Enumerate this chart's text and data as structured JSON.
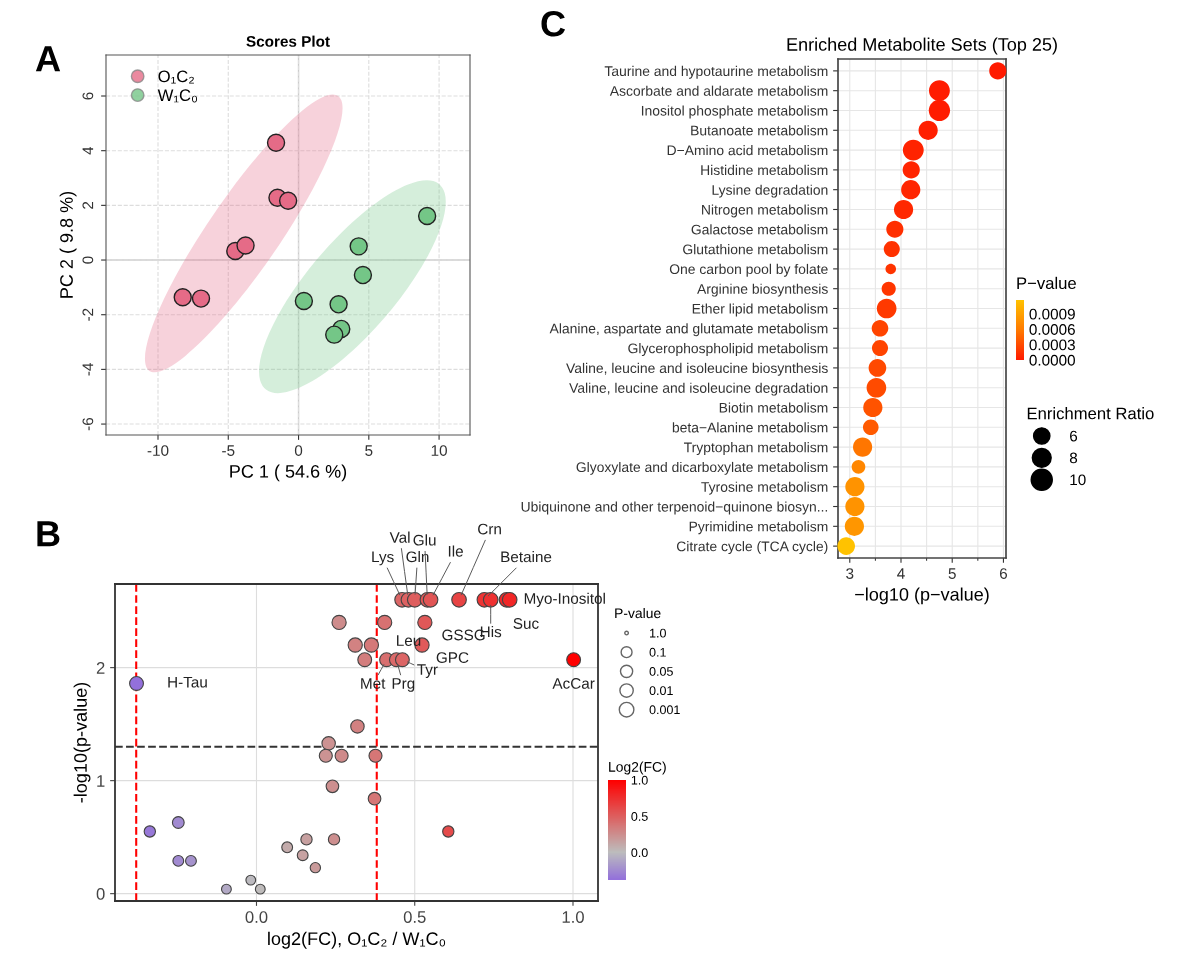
{
  "chart_data": [
    {
      "type": "scatter",
      "title": "Scores Plot",
      "xlabel": "PC 1 ( 54.6 %)",
      "ylabel": "PC 2 ( 9.8 %)",
      "xlim": [
        -13.7,
        12.2
      ],
      "ylim": [
        -6.4,
        7.5
      ],
      "xticks": [
        -10,
        -5,
        0,
        5,
        10
      ],
      "yticks": [
        -6,
        -4,
        -2,
        0,
        2,
        4,
        6
      ],
      "grid": true,
      "legend": "top left",
      "marker": "circle",
      "annotations": [
        "A"
      ],
      "series": [
        {
          "name": "O₁C₂",
          "color": "#e56b87",
          "x": [
            -1.6,
            -1.5,
            -0.74,
            -4.5,
            -3.77,
            -8.24,
            -6.94
          ],
          "values": [
            4.29,
            2.28,
            2.17,
            0.33,
            0.53,
            -1.36,
            -1.41
          ]
        },
        {
          "name": "W₁C₀",
          "color": "#74c687",
          "x": [
            9.15,
            4.28,
            4.58,
            0.38,
            2.85,
            3.04,
            2.54
          ],
          "values": [
            1.61,
            0.5,
            -0.55,
            -1.5,
            -1.62,
            -2.52,
            -2.73
          ]
        }
      ]
    },
    {
      "type": "bubble",
      "xlabel": "log2(FC), O₁C₂ / W₁C₀",
      "ylabel": "-log10(p-value)",
      "xlim": [
        -0.447,
        1.079
      ],
      "ylim": [
        -0.065,
        2.74
      ],
      "xticks": [
        {
          "value": 0,
          "label": "0.0"
        },
        {
          "value": 0.5,
          "label": "0.5"
        },
        {
          "value": 1,
          "label": "1.0"
        }
      ],
      "yticks": [
        0,
        1,
        2
      ],
      "grid": true,
      "marker": "circle",
      "legend_title": "P-value",
      "clabel": "Log2(FC)",
      "clim": [
        -0.38,
        1.0
      ],
      "cticks": [
        {
          "value": 0,
          "label": "0.0"
        },
        {
          "value": 0.5,
          "label": "0.5"
        },
        {
          "value": 1,
          "label": "1.0"
        }
      ],
      "size_legend": [
        {
          "value": 0.06,
          "label": "1.0"
        },
        {
          "value": 0.56,
          "label": "0.1"
        },
        {
          "value": 0.7,
          "label": "0.05"
        },
        {
          "value": 0.84,
          "label": "0.01"
        },
        {
          "value": 1.0,
          "label": "0.001"
        }
      ],
      "x": [
        0.46,
        0.48,
        0.5,
        0.54,
        0.55,
        0.64,
        0.72,
        0.74,
        0.79,
        0.8,
        0.261,
        0.405,
        0.532,
        0.312,
        0.363,
        0.523,
        0.342,
        0.411,
        0.442,
        0.461,
        1.002,
        -0.379,
        0.319,
        0.228,
        0.219,
        0.269,
        0.376,
        0.24,
        0.373,
        0.606,
        -0.337,
        -0.247,
        -0.247,
        -0.207,
        0.158,
        0.245,
        0.097,
        0.146,
        0.186,
        -0.018,
        0.012,
        -0.095
      ],
      "values": [
        2.6,
        2.6,
        2.6,
        2.6,
        2.6,
        2.6,
        2.6,
        2.6,
        2.6,
        2.6,
        2.4,
        2.4,
        2.4,
        2.2,
        2.2,
        2.2,
        2.07,
        2.07,
        2.07,
        2.07,
        2.07,
        1.86,
        1.48,
        1.33,
        1.22,
        1.22,
        1.22,
        0.95,
        0.84,
        0.55,
        0.55,
        0.63,
        0.29,
        0.29,
        0.48,
        0.48,
        0.41,
        0.34,
        0.23,
        0.12,
        0.04,
        0.04
      ],
      "cvalues": [
        0.46,
        0.48,
        0.5,
        0.54,
        0.55,
        0.64,
        0.72,
        0.74,
        0.79,
        0.8,
        0.261,
        0.405,
        0.532,
        0.312,
        0.363,
        0.523,
        0.342,
        0.411,
        0.442,
        0.461,
        1.0,
        -0.379,
        0.319,
        0.228,
        0.219,
        0.269,
        0.376,
        0.24,
        0.373,
        0.606,
        -0.337,
        -0.247,
        -0.247,
        -0.207,
        0.158,
        0.245,
        0.097,
        0.146,
        0.186,
        -0.018,
        0.012,
        -0.095
      ],
      "sizes": [
        1.0,
        1.0,
        1.0,
        1.0,
        1.0,
        1.0,
        1.0,
        1.0,
        1.0,
        1.0,
        0.95,
        0.95,
        0.95,
        0.95,
        0.95,
        0.95,
        0.9,
        0.9,
        0.9,
        0.9,
        0.9,
        0.9,
        0.85,
        0.85,
        0.8,
        0.8,
        0.8,
        0.75,
        0.75,
        0.6,
        0.6,
        0.65,
        0.55,
        0.55,
        0.6,
        0.6,
        0.55,
        0.55,
        0.5,
        0.45,
        0.45,
        0.45
      ],
      "ref_lines": [
        {
          "axis": "x",
          "value": -0.38,
          "color": "#ff0000",
          "line_style": "dashed"
        },
        {
          "axis": "x",
          "value": 0.38,
          "color": "#ff0000",
          "line_style": "dashed"
        },
        {
          "axis": "y",
          "value": 1.3,
          "color": "#333333",
          "line_style": "dashed"
        }
      ],
      "annotations": [
        "B",
        {
          "text": "Lys",
          "x": 0.46,
          "y": 2.6
        },
        {
          "text": "Val",
          "x": 0.48,
          "y": 2.6
        },
        {
          "text": "Gln",
          "x": 0.5,
          "y": 2.6
        },
        {
          "text": "Glu",
          "x": 0.54,
          "y": 2.6
        },
        {
          "text": "Ile",
          "x": 0.55,
          "y": 2.6
        },
        {
          "text": "Crn",
          "x": 0.64,
          "y": 2.6
        },
        {
          "text": "Betaine",
          "x": 0.72,
          "y": 2.6
        },
        {
          "text": "His",
          "x": 0.74,
          "y": 2.6
        },
        {
          "text": "Suc",
          "x": 0.79,
          "y": 2.6
        },
        {
          "text": "Myo-Inositol",
          "x": 0.8,
          "y": 2.6
        },
        {
          "text": "Leu",
          "x": 0.405,
          "y": 2.4
        },
        {
          "text": "GSSG",
          "x": 0.532,
          "y": 2.4
        },
        {
          "text": "GPC",
          "x": 0.523,
          "y": 2.2
        },
        {
          "text": "Met",
          "x": 0.411,
          "y": 2.07
        },
        {
          "text": "Prg",
          "x": 0.442,
          "y": 2.07
        },
        {
          "text": "Tyr",
          "x": 0.461,
          "y": 2.07
        },
        {
          "text": "AcCar",
          "x": 1.002,
          "y": 2.07
        },
        {
          "text": "H-Tau",
          "x": -0.379,
          "y": 1.86
        }
      ]
    },
    {
      "type": "bubble",
      "orientation": "horizontal",
      "title": "Enriched Metabolite Sets (Top 25)",
      "xlabel": "−log10 (p−value)",
      "xlim": [
        2.77,
        6.05
      ],
      "xticks": [
        3,
        4,
        5,
        6
      ],
      "grid": true,
      "marker": "circle",
      "legend_title": "Enrichment Ratio",
      "clabel": "P−value",
      "clim": [
        0,
        0.00117
      ],
      "cticks": [
        {
          "value": 0,
          "label": "0.0000"
        },
        {
          "value": 0.0003,
          "label": "0.0003"
        },
        {
          "value": 0.0006,
          "label": "0.0006"
        },
        {
          "value": 0.0009,
          "label": "0.0009"
        }
      ],
      "size_legend": [
        6,
        8,
        10
      ],
      "annotations": [
        "C"
      ],
      "categories": [
        "Taurine and hypotaurine metabolism",
        "Ascorbate and aldarate metabolism",
        "Inositol phosphate metabolism",
        "Butanoate metabolism",
        "D−Amino acid metabolism",
        "Histidine metabolism",
        "Lysine degradation",
        "Nitrogen metabolism",
        "Galactose metabolism",
        "Glutathione metabolism",
        "One carbon pool by folate",
        "Arginine biosynthesis",
        "Ether lipid metabolism",
        "Alanine, aspartate and glutamate metabolism",
        "Glycerophospholipid metabolism",
        "Valine, leucine and isoleucine biosynthesis",
        "Valine, leucine and isoleucine degradation",
        "Biotin metabolism",
        "beta−Alanine metabolism",
        "Tryptophan metabolism",
        "Glyoxylate and dicarboxylate metabolism",
        "Tyrosine metabolism",
        "Ubiquinone and other terpenoid−quinone biosyn...",
        "Pyrimidine metabolism",
        "Citrate cycle (TCA cycle)"
      ],
      "values": [
        5.89,
        4.75,
        4.75,
        4.53,
        4.24,
        4.2,
        4.19,
        4.05,
        3.88,
        3.82,
        3.8,
        3.76,
        3.72,
        3.59,
        3.59,
        3.54,
        3.52,
        3.45,
        3.41,
        3.25,
        3.17,
        3.1,
        3.1,
        3.09,
        2.93
      ],
      "sizes": [
        6.6,
        9.8,
        10.2,
        8.3,
        9.8,
        6.6,
        8.3,
        8.3,
        6.6,
        5.8,
        2.5,
        4.5,
        8.7,
        6.2,
        5.8,
        7.0,
        8.7,
        8.3,
        5.5,
        8.3,
        4.2,
        8.3,
        8.3,
        8.3,
        7.0
      ],
      "cvalues": [
        1.3e-06,
        1.8e-05,
        1.8e-05,
        2.9e-05,
        5.8e-05,
        6.3e-05,
        6.5e-05,
        8.9e-05,
        0.00013,
        0.00015,
        0.00016,
        0.00017,
        0.00019,
        0.00026,
        0.00026,
        0.00029,
        0.0003,
        0.00035,
        0.00039,
        0.00056,
        0.00068,
        0.00079,
        0.00079,
        0.00081,
        0.00117
      ]
    }
  ]
}
